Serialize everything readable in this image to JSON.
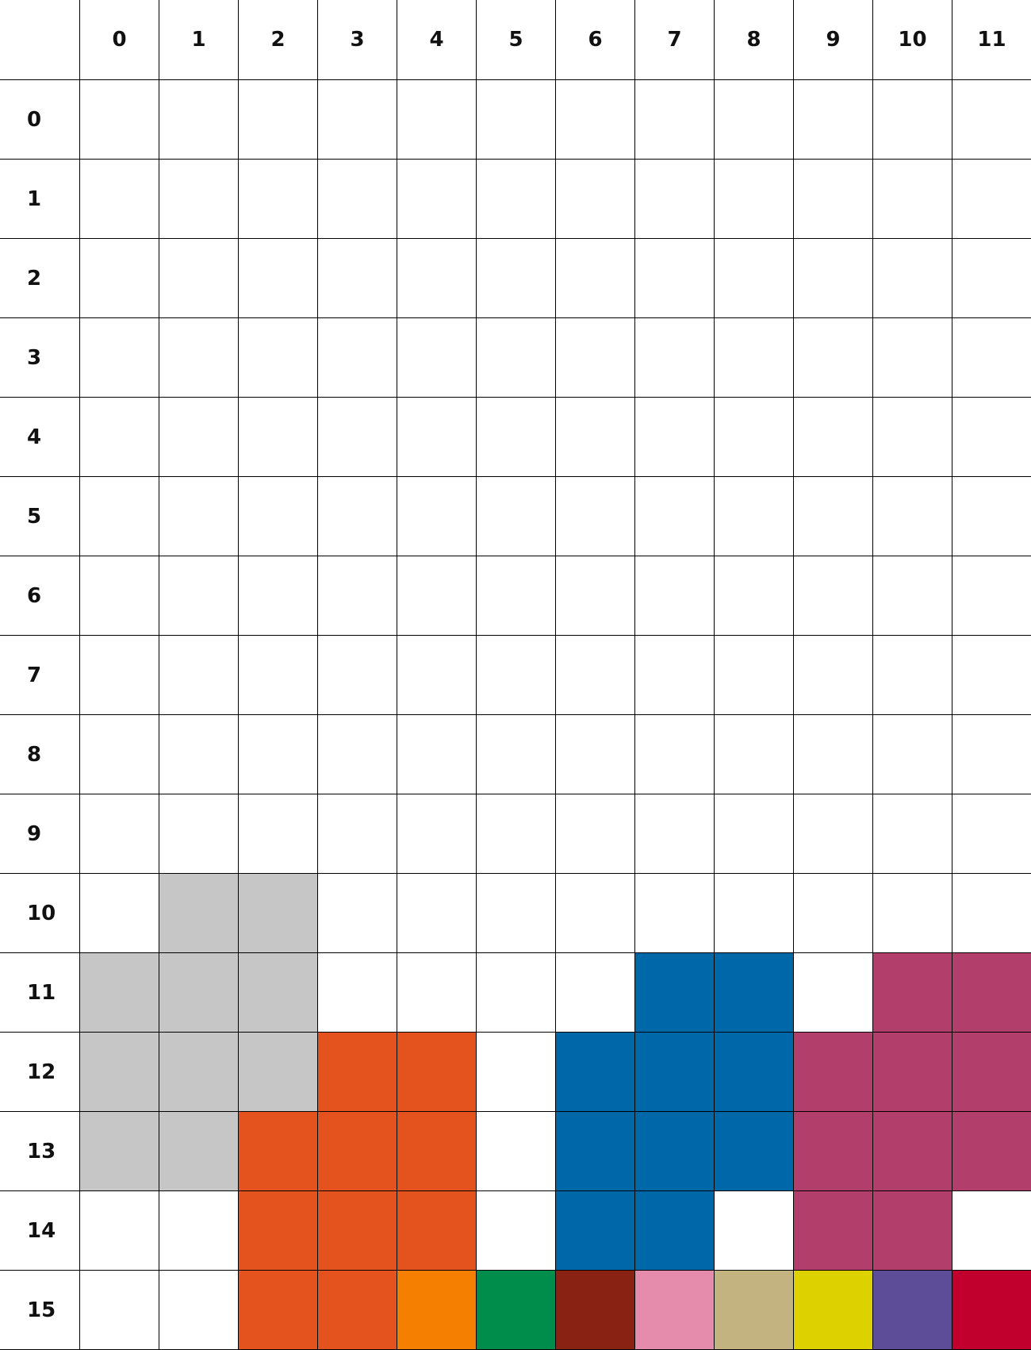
{
  "grid": {
    "cols": 12,
    "rows": 16,
    "col_labels": [
      "0",
      "1",
      "2",
      "3",
      "4",
      "5",
      "6",
      "7",
      "8",
      "9",
      "10",
      "11"
    ],
    "row_labels": [
      "0",
      "1",
      "2",
      "3",
      "4",
      "5",
      "6",
      "7",
      "8",
      "9",
      "10",
      "11",
      "12",
      "13",
      "14",
      "15"
    ],
    "empty_color": "#ffffff",
    "line_color": "#000000",
    "palette": {
      "G": "#c6c6c6",
      "O": "#e4531e",
      "B": "#0067a9",
      "M": "#b23e6b",
      "A": "#f57f00",
      "E": "#008d4c",
      "R": "#892212",
      "P": "#e58cac",
      "T": "#c2b381",
      "Y": "#ddd200",
      "V": "#5d4c98",
      "C": "#c2002d"
    },
    "cells": [
      "............",
      "............",
      "............",
      "............",
      "............",
      "............",
      "............",
      "............",
      "............",
      "............",
      ".GG.........",
      "GGG....BB.MM",
      "GGGOO.BBBMMM",
      "GGOOO.BBBMMM",
      "..OOO.BB.MM.",
      "..OOAERPTYVC"
    ]
  }
}
